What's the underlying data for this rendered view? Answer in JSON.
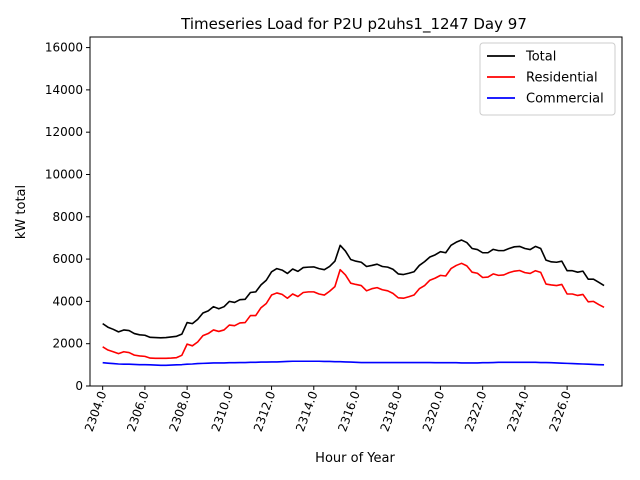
{
  "chart_data": {
    "type": "line",
    "title": "Timeseries Load for P2U p2uhs1_1247  Day 97",
    "xlabel": "Hour of Year",
    "ylabel": "kW total",
    "xlim": [
      2303.4,
      2328.6
    ],
    "ylim": [
      0,
      16500
    ],
    "grid": false,
    "legend_position": "top-right",
    "x_ticks": [
      2304,
      2306,
      2308,
      2310,
      2312,
      2314,
      2316,
      2318,
      2320,
      2322,
      2324,
      2326
    ],
    "x_tick_labels": [
      "2304.0",
      "2306.0",
      "2308.0",
      "2310.0",
      "2312.0",
      "2314.0",
      "2316.0",
      "2318.0",
      "2320.0",
      "2322.0",
      "2324.0",
      "2326.0"
    ],
    "y_ticks": [
      0,
      2000,
      4000,
      6000,
      8000,
      10000,
      12000,
      14000,
      16000
    ],
    "y_tick_labels": [
      "0",
      "2000",
      "4000",
      "6000",
      "8000",
      "10000",
      "12000",
      "14000",
      "16000"
    ],
    "x_start": 2304,
    "x_step": 0.25,
    "series": [
      {
        "name": "Total",
        "color": "#000000",
        "values": [
          2950,
          2780,
          2680,
          2560,
          2650,
          2620,
          2480,
          2420,
          2400,
          2300,
          2290,
          2280,
          2290,
          2320,
          2350,
          2450,
          3000,
          2950,
          3150,
          3450,
          3550,
          3750,
          3650,
          3750,
          4000,
          3950,
          4080,
          4100,
          4420,
          4450,
          4780,
          5000,
          5400,
          5550,
          5480,
          5320,
          5530,
          5420,
          5600,
          5620,
          5630,
          5550,
          5500,
          5650,
          5900,
          6650,
          6380,
          5980,
          5900,
          5850,
          5650,
          5700,
          5760,
          5650,
          5620,
          5520,
          5300,
          5270,
          5330,
          5400,
          5700,
          5880,
          6100,
          6200,
          6350,
          6300,
          6650,
          6800,
          6900,
          6780,
          6500,
          6450,
          6300,
          6300,
          6460,
          6400,
          6400,
          6500,
          6580,
          6600,
          6500,
          6450,
          6600,
          6500,
          5950,
          5870,
          5850,
          5900,
          5450,
          5450,
          5380,
          5430,
          5050,
          5050,
          4900,
          4750
        ]
      },
      {
        "name": "Residential",
        "color": "#ff0000",
        "values": [
          1850,
          1700,
          1620,
          1530,
          1620,
          1580,
          1460,
          1420,
          1400,
          1320,
          1310,
          1310,
          1310,
          1320,
          1340,
          1450,
          1980,
          1900,
          2080,
          2380,
          2480,
          2650,
          2580,
          2650,
          2880,
          2850,
          2980,
          3000,
          3330,
          3330,
          3700,
          3900,
          4300,
          4400,
          4330,
          4150,
          4350,
          4230,
          4420,
          4450,
          4450,
          4350,
          4300,
          4480,
          4700,
          5500,
          5250,
          4860,
          4800,
          4750,
          4500,
          4600,
          4650,
          4550,
          4500,
          4380,
          4170,
          4150,
          4220,
          4300,
          4600,
          4750,
          5000,
          5100,
          5230,
          5200,
          5550,
          5700,
          5800,
          5680,
          5380,
          5330,
          5130,
          5150,
          5300,
          5230,
          5250,
          5360,
          5430,
          5460,
          5360,
          5320,
          5450,
          5370,
          4820,
          4780,
          4750,
          4800,
          4350,
          4350,
          4280,
          4330,
          3980,
          4000,
          3850,
          3720
        ]
      },
      {
        "name": "Commercial",
        "color": "#0000ff",
        "values": [
          1100,
          1080,
          1060,
          1040,
          1030,
          1030,
          1020,
          1010,
          1010,
          1000,
          990,
          980,
          980,
          990,
          1000,
          1010,
          1030,
          1040,
          1060,
          1070,
          1080,
          1090,
          1090,
          1090,
          1100,
          1100,
          1110,
          1110,
          1120,
          1120,
          1130,
          1130,
          1140,
          1140,
          1150,
          1160,
          1170,
          1170,
          1170,
          1170,
          1170,
          1170,
          1160,
          1160,
          1150,
          1150,
          1140,
          1130,
          1120,
          1110,
          1110,
          1110,
          1110,
          1110,
          1110,
          1110,
          1110,
          1110,
          1110,
          1110,
          1110,
          1110,
          1110,
          1100,
          1100,
          1100,
          1100,
          1100,
          1090,
          1090,
          1090,
          1090,
          1100,
          1100,
          1110,
          1120,
          1120,
          1120,
          1120,
          1120,
          1120,
          1120,
          1120,
          1110,
          1110,
          1100,
          1090,
          1080,
          1070,
          1060,
          1050,
          1040,
          1030,
          1020,
          1010,
          1000
        ]
      }
    ]
  }
}
